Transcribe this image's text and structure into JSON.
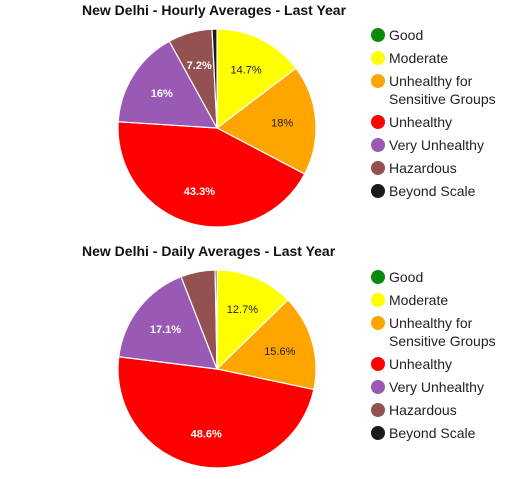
{
  "colors": {
    "Good": "#0a8a0a",
    "Moderate": "#ffff00",
    "Unhealthy for Sensitive Groups": "#ffa500",
    "Unhealthy": "#ff0000",
    "Very Unhealthy": "#9b59b6",
    "Hazardous": "#935151",
    "Beyond Scale": "#1a1a1a"
  },
  "chart_data": [
    {
      "type": "pie",
      "title": "New Delhi - Hourly Averages - Last Year",
      "legend_position": "right",
      "slices": [
        {
          "label": "Good",
          "value": 0.0,
          "display": ""
        },
        {
          "label": "Moderate",
          "value": 14.7,
          "display": "14.7%"
        },
        {
          "label": "Unhealthy for Sensitive Groups",
          "value": 18.0,
          "display": "18%"
        },
        {
          "label": "Unhealthy",
          "value": 43.3,
          "display": "43.3%"
        },
        {
          "label": "Very Unhealthy",
          "value": 16.0,
          "display": "16%"
        },
        {
          "label": "Hazardous",
          "value": 7.2,
          "display": "7.2%"
        },
        {
          "label": "Beyond Scale",
          "value": 0.8,
          "display": ""
        }
      ],
      "legend": [
        {
          "label": "Good",
          "line1": "Good",
          "line2": ""
        },
        {
          "label": "Moderate",
          "line1": "Moderate",
          "line2": ""
        },
        {
          "label": "Unhealthy for Sensitive Groups",
          "line1": "Unhealthy for",
          "line2": "Sensitive Groups"
        },
        {
          "label": "Unhealthy",
          "line1": "Unhealthy",
          "line2": ""
        },
        {
          "label": "Very Unhealthy",
          "line1": "Very Unhealthy",
          "line2": ""
        },
        {
          "label": "Hazardous",
          "line1": "Hazardous",
          "line2": ""
        },
        {
          "label": "Beyond Scale",
          "line1": "Beyond Scale",
          "line2": ""
        }
      ]
    },
    {
      "type": "pie",
      "title": "New Delhi - Daily Averages - Last Year",
      "legend_position": "right",
      "slices": [
        {
          "label": "Good",
          "value": 0.0,
          "display": ""
        },
        {
          "label": "Moderate",
          "value": 12.7,
          "display": "12.7%"
        },
        {
          "label": "Unhealthy for Sensitive Groups",
          "value": 15.6,
          "display": "15.6%"
        },
        {
          "label": "Unhealthy",
          "value": 48.6,
          "display": "48.6%"
        },
        {
          "label": "Very Unhealthy",
          "value": 17.1,
          "display": "17.1%"
        },
        {
          "label": "Hazardous",
          "value": 5.6,
          "display": ""
        },
        {
          "label": "Beyond Scale",
          "value": 0.3,
          "display": ""
        }
      ],
      "legend": [
        {
          "label": "Good",
          "line1": "Good",
          "line2": ""
        },
        {
          "label": "Moderate",
          "line1": "Moderate",
          "line2": ""
        },
        {
          "label": "Unhealthy for Sensitive Groups",
          "line1": "Unhealthy for",
          "line2": "Sensitive Groups"
        },
        {
          "label": "Unhealthy",
          "line1": "Unhealthy",
          "line2": ""
        },
        {
          "label": "Very Unhealthy",
          "line1": "Very Unhealthy",
          "line2": ""
        },
        {
          "label": "Hazardous",
          "line1": "Hazardous",
          "line2": ""
        },
        {
          "label": "Beyond Scale",
          "line1": "Beyond Scale",
          "line2": ""
        }
      ]
    }
  ]
}
